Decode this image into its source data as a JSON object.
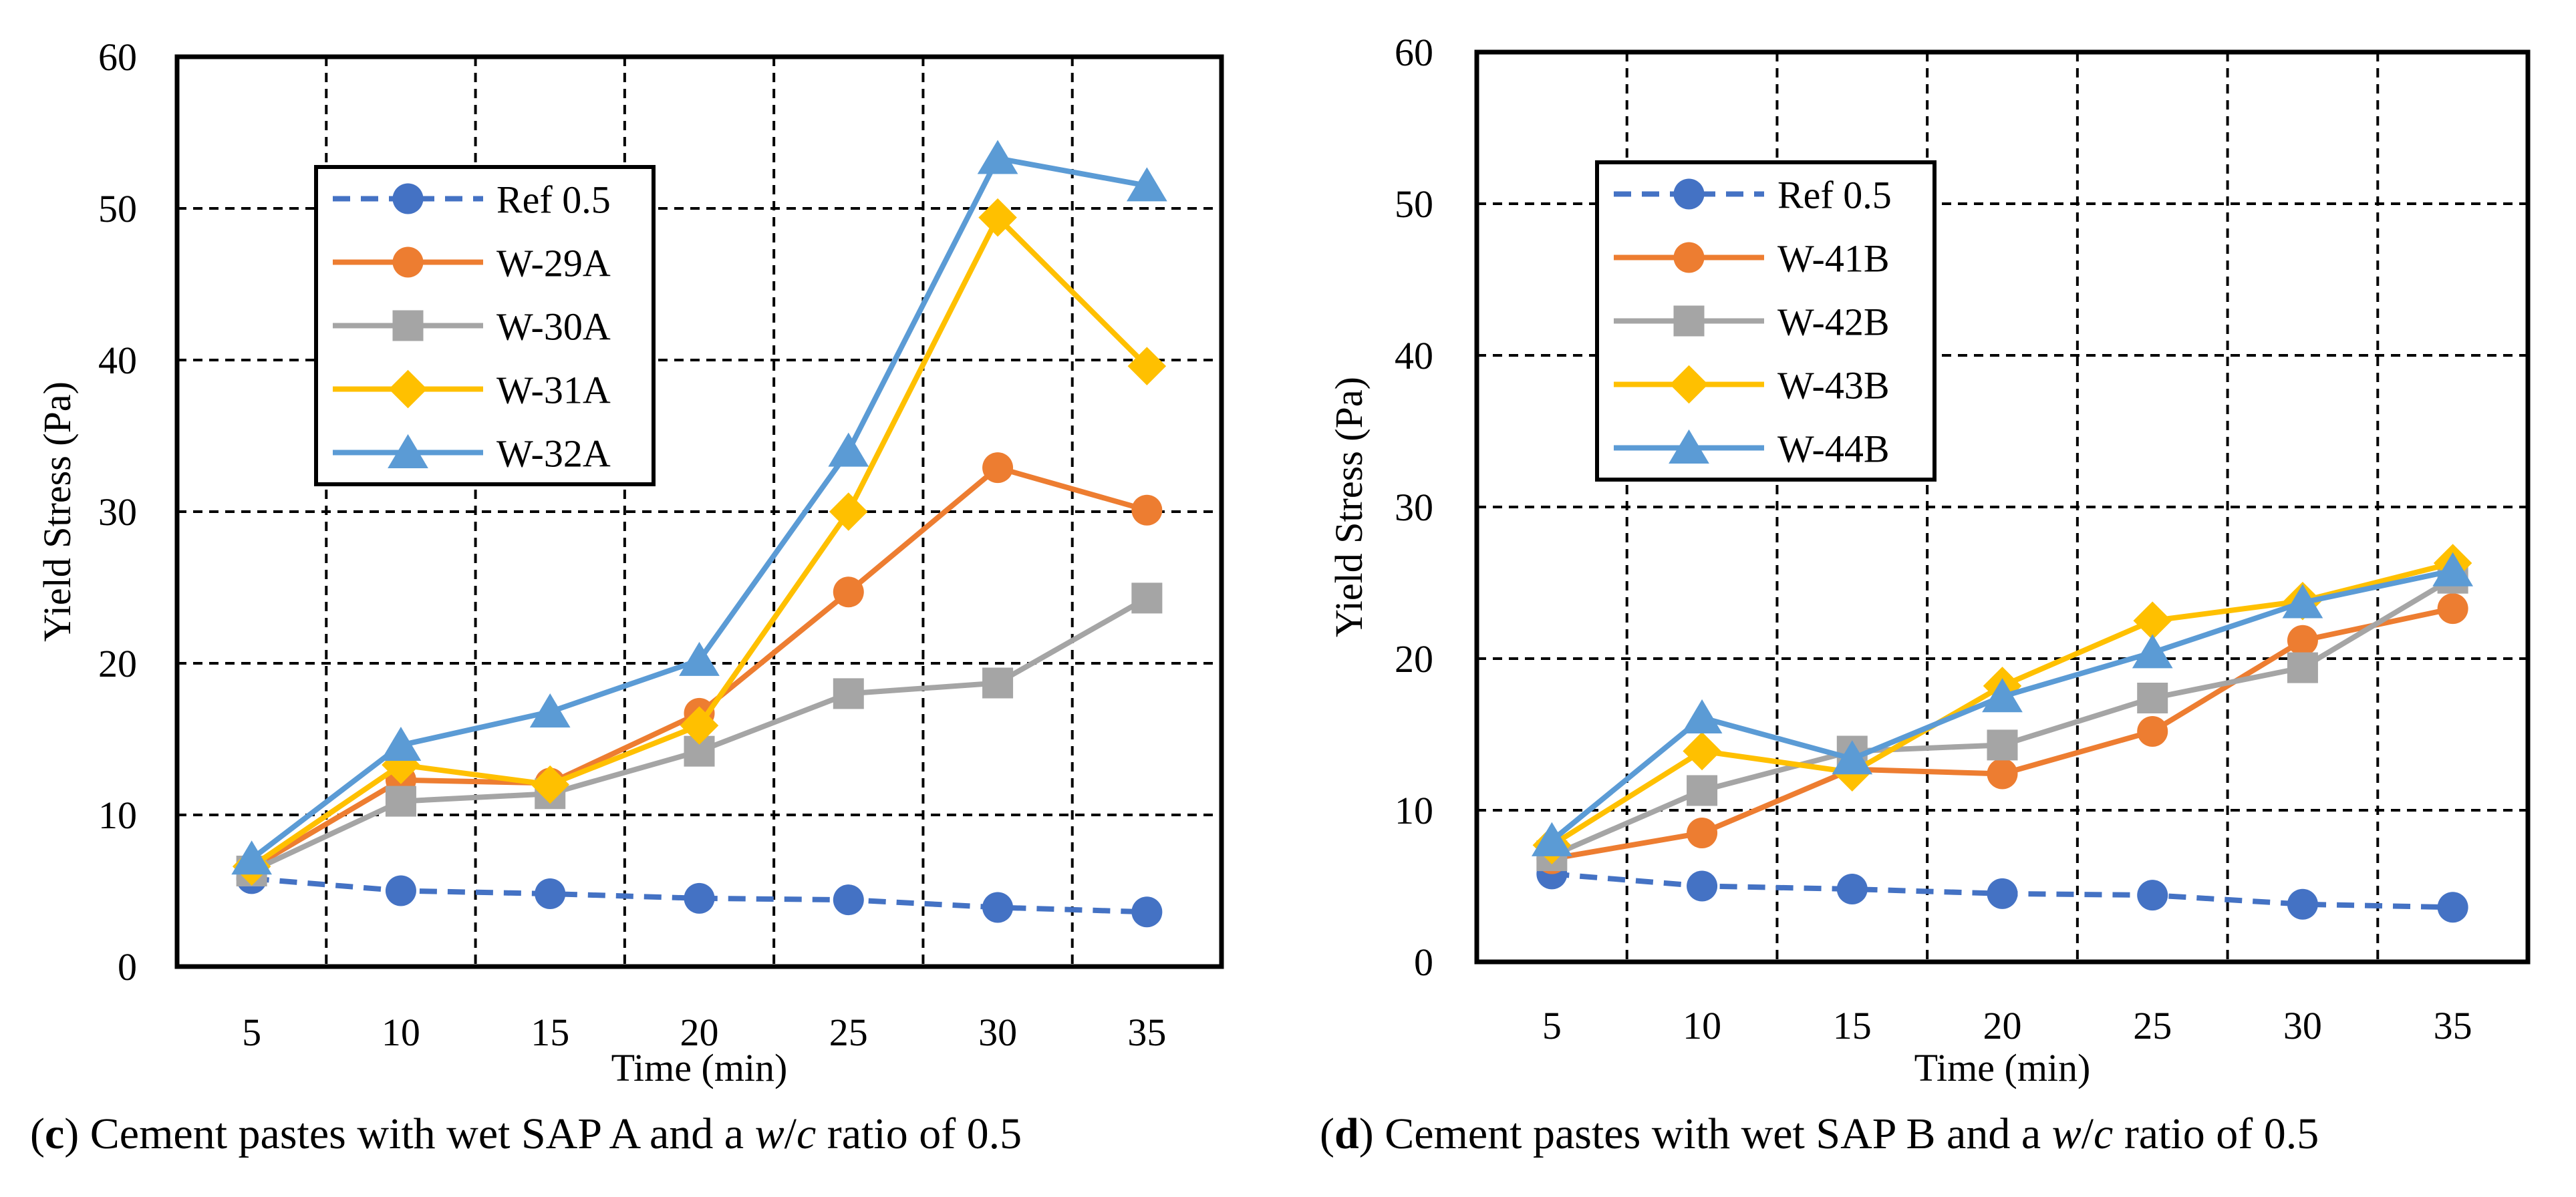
{
  "chart_data": [
    {
      "type": "line",
      "panel": "c",
      "title": "",
      "xlabel": "Time (min)",
      "ylabel": "Yield Stress (Pa)",
      "categories": [
        5,
        10,
        15,
        20,
        25,
        30,
        35
      ],
      "ylim": [
        0,
        60
      ],
      "yticks": [
        0,
        10,
        20,
        30,
        40,
        50,
        60
      ],
      "grid": true,
      "legend_position": "top-left",
      "series": [
        {
          "name": "Ref 0.5",
          "values": [
            5.8,
            5.0,
            4.8,
            4.5,
            4.4,
            3.9,
            3.6
          ],
          "color": "#4472C4",
          "marker": "circle",
          "dashed": true
        },
        {
          "name": "W-29A",
          "values": [
            6.5,
            12.3,
            12.1,
            16.7,
            24.7,
            32.9,
            30.1
          ],
          "color": "#ED7D31",
          "marker": "circle",
          "dashed": false
        },
        {
          "name": "W-30A",
          "values": [
            6.3,
            10.9,
            11.4,
            14.2,
            18.0,
            18.7,
            24.3
          ],
          "color": "#A5A5A5",
          "marker": "square",
          "dashed": false
        },
        {
          "name": "W-31A",
          "values": [
            6.6,
            13.3,
            12.0,
            15.9,
            30.0,
            49.4,
            39.6
          ],
          "color": "#FFC000",
          "marker": "diamond",
          "dashed": false
        },
        {
          "name": "W-32A",
          "values": [
            7.1,
            14.6,
            16.8,
            20.2,
            34.0,
            53.3,
            51.5
          ],
          "color": "#5B9BD5",
          "marker": "triangle",
          "dashed": false
        }
      ],
      "caption": {
        "label": "c",
        "pre": "Cement pastes with wet SAP A and a ",
        "w": "w",
        "slash": "/",
        "c": "c",
        "post": " ratio of 0.5"
      }
    },
    {
      "type": "line",
      "panel": "d",
      "title": "",
      "xlabel": "Time (min)",
      "ylabel": "Yield Stress (Pa)",
      "categories": [
        5,
        10,
        15,
        20,
        25,
        30,
        35
      ],
      "ylim": [
        0,
        60
      ],
      "yticks": [
        0,
        10,
        20,
        30,
        40,
        50,
        60
      ],
      "grid": true,
      "legend_position": "top-left",
      "series": [
        {
          "name": "Ref 0.5",
          "values": [
            5.8,
            5.0,
            4.8,
            4.5,
            4.4,
            3.8,
            3.6
          ],
          "color": "#4472C4",
          "marker": "circle",
          "dashed": true
        },
        {
          "name": "W-41B",
          "values": [
            6.8,
            8.5,
            12.7,
            12.4,
            15.2,
            21.2,
            23.3
          ],
          "color": "#ED7D31",
          "marker": "circle",
          "dashed": false
        },
        {
          "name": "W-42B",
          "values": [
            7.0,
            11.3,
            13.9,
            14.3,
            17.4,
            19.4,
            25.3
          ],
          "color": "#A5A5A5",
          "marker": "square",
          "dashed": false
        },
        {
          "name": "W-43B",
          "values": [
            7.7,
            13.9,
            12.5,
            18.2,
            22.5,
            23.8,
            26.3
          ],
          "color": "#FFC000",
          "marker": "diamond",
          "dashed": false
        },
        {
          "name": "W-44B",
          "values": [
            8.0,
            16.1,
            13.4,
            17.5,
            20.4,
            23.7,
            25.8
          ],
          "color": "#5B9BD5",
          "marker": "triangle",
          "dashed": false
        }
      ],
      "caption": {
        "label": "d",
        "pre": "Cement pastes with wet SAP B and a ",
        "w": "w",
        "slash": "/",
        "c": "c",
        "post": " ratio of 0.5"
      }
    }
  ]
}
